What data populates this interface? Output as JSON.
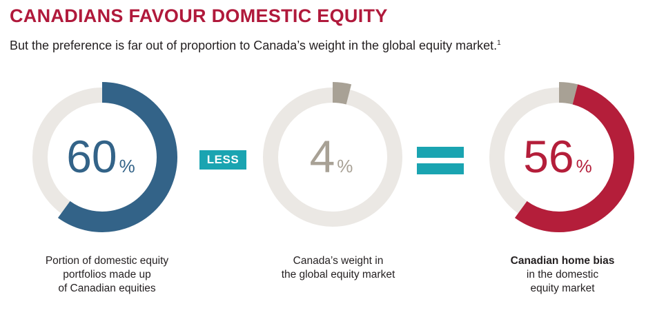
{
  "header": {
    "title": "CANADIANS FAVOUR DOMESTIC EQUITY",
    "subtitle": "But the preference is far out of proportion to Canada’s weight in the global equity market.",
    "subtitle_footnote": "1"
  },
  "operators": {
    "less_label": "LESS"
  },
  "chart_data": [
    {
      "type": "pie",
      "variant": "donut",
      "values": [
        60
      ],
      "value_label": "60",
      "unit": "%",
      "colors": {
        "fill": "#336388",
        "track": "#ebe8e4",
        "text": "#336388"
      },
      "caption": [
        "Portion of domestic equity",
        "portfolios made up",
        "of Canadian equities"
      ]
    },
    {
      "type": "pie",
      "variant": "donut",
      "values": [
        4
      ],
      "value_label": "4",
      "unit": "%",
      "colors": {
        "fill": "#a8a195",
        "track": "#ebe8e4",
        "text": "#a8a195"
      },
      "caption": [
        "Canada’s weight in",
        "the global equity market"
      ]
    },
    {
      "type": "pie",
      "variant": "donut",
      "values": [
        56
      ],
      "extra_segment_pct": 4,
      "value_label": "56",
      "unit": "%",
      "colors": {
        "fill": "#b41e3a",
        "extra": "#a8a195",
        "track": "#ebe8e4",
        "text": "#b41e3a"
      },
      "caption_bold": "Canadian home bias",
      "caption": [
        "in the domestic",
        "equity market"
      ]
    }
  ]
}
